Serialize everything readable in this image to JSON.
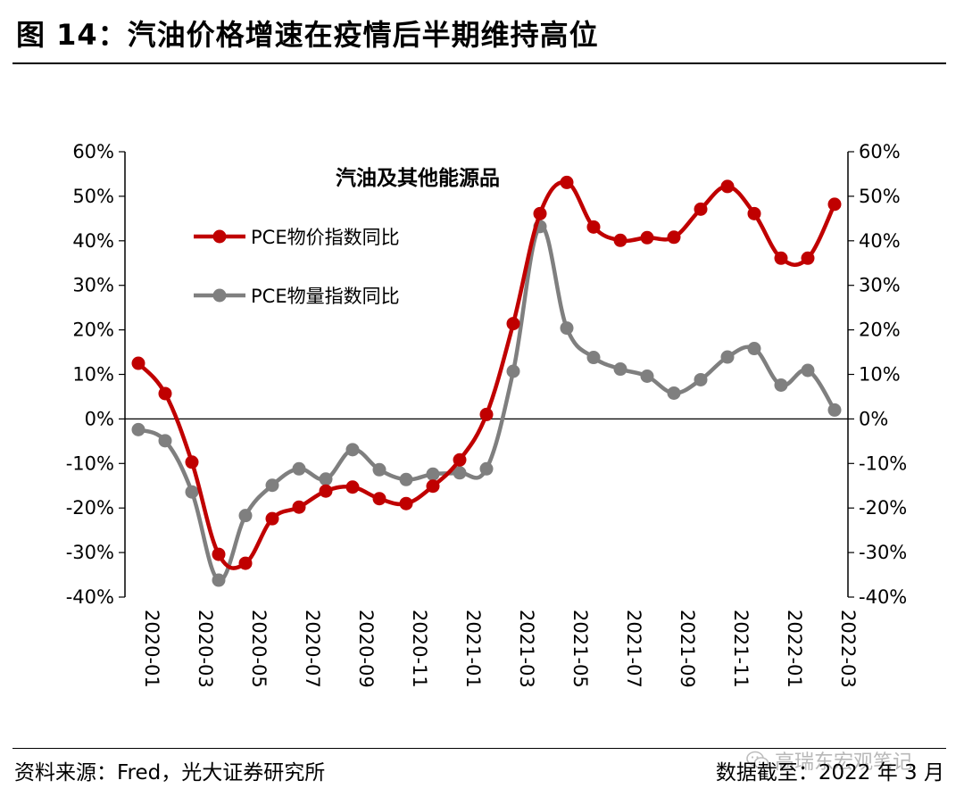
{
  "figure": {
    "title": "图 14：汽油价格增速在疫情后半期维持高位",
    "source": "资料来源：Fred，光大证券研究所",
    "cutoff": "数据截至：2022 年 3 月",
    "watermark": "高瑞东宏观笔记"
  },
  "colors": {
    "series_price": "#c00000",
    "series_volume": "#7f7f7f",
    "axis": "#000000"
  },
  "chart_data": {
    "type": "line",
    "title": "汽油及其他能源品",
    "x": [
      "2020-01",
      "2020-02",
      "2020-03",
      "2020-04",
      "2020-05",
      "2020-06",
      "2020-07",
      "2020-08",
      "2020-09",
      "2020-10",
      "2020-11",
      "2020-12",
      "2021-01",
      "2021-02",
      "2021-03",
      "2021-04",
      "2021-05",
      "2021-06",
      "2021-07",
      "2021-08",
      "2021-09",
      "2021-10",
      "2021-11",
      "2021-12",
      "2022-01",
      "2022-02",
      "2022-03"
    ],
    "x_tick_labels": [
      "2020-01",
      "2020-03",
      "2020-05",
      "2020-07",
      "2020-09",
      "2020-11",
      "2021-01",
      "2021-03",
      "2021-05",
      "2021-07",
      "2021-09",
      "2021-11",
      "2022-01",
      "2022-03"
    ],
    "series": [
      {
        "name": "PCE物价指数同比",
        "color": "#c00000",
        "values": [
          12.5,
          5.7,
          -9.7,
          -30.4,
          -32.4,
          -22.4,
          -19.8,
          -16.2,
          -15.3,
          -17.9,
          -19.0,
          -15.1,
          -9.2,
          1.0,
          21.4,
          46.1,
          53.1,
          43.1,
          40.1,
          40.7,
          40.8,
          47.1,
          52.2,
          46.1,
          36.1,
          36.1,
          48.2
        ]
      },
      {
        "name": "PCE物量指数同比",
        "color": "#7f7f7f",
        "values": [
          -2.4,
          -4.9,
          -16.4,
          -36.2,
          -21.7,
          -14.9,
          -11.2,
          -13.5,
          -6.9,
          -11.4,
          -13.6,
          -12.4,
          -12.1,
          -11.2,
          10.7,
          43.2,
          20.4,
          13.8,
          11.2,
          9.6,
          5.8,
          8.8,
          13.9,
          15.8,
          7.6,
          10.9,
          2.0
        ]
      }
    ],
    "ylim": [
      -40,
      60
    ],
    "y_ticks": [
      -40,
      -30,
      -20,
      -10,
      0,
      10,
      20,
      30,
      40,
      50,
      60
    ],
    "y_tick_labels": [
      "-40%",
      "-30%",
      "-20%",
      "-10%",
      "0%",
      "10%",
      "20%",
      "30%",
      "40%",
      "50%",
      "60%"
    ],
    "y2_tick_labels": [
      "-40%",
      "-30%",
      "-20%",
      "-10%",
      "0%",
      "10%",
      "20%",
      "30%",
      "40%",
      "50%",
      "60%"
    ],
    "legend_position": "upper-left",
    "grid": false
  }
}
